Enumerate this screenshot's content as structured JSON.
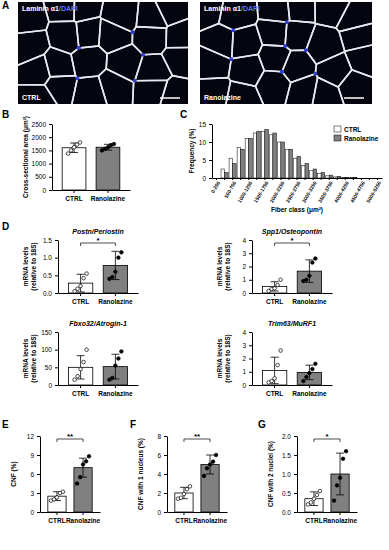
{
  "panel_a": {
    "panel": "A",
    "images": [
      {
        "stain_parts": [
          "Laminin α1",
          "/DAPI"
        ],
        "label": "CTRL"
      },
      {
        "stain_parts": [
          "Laminin α1",
          "/DAPI"
        ],
        "label": "Ranolazine"
      }
    ]
  },
  "chart_data": [
    {
      "type": "bar",
      "panel": "B",
      "ylabel": "Cross-sectional area (μm²)",
      "categories": [
        "CTRL",
        "Ranolazine"
      ],
      "values": [
        1600,
        1620
      ],
      "errors": [
        180,
        110
      ],
      "points": [
        [
          1380,
          1500,
          1620,
          1720,
          1800
        ],
        [
          1500,
          1560,
          1620,
          1700,
          1740
        ]
      ],
      "colors": [
        "#ffffff",
        "#808080"
      ],
      "ylim": [
        0,
        2500
      ],
      "yticks": [
        0,
        500,
        1000,
        1500,
        2000,
        2500
      ]
    },
    {
      "type": "histogram",
      "panel": "C",
      "ylabel": "Frequency (%)",
      "xlabel": "Fiber class (μm²)",
      "categories": [
        "0-250",
        null,
        "500-750",
        null,
        "1000-1250",
        null,
        "1500-1750",
        null,
        "2000-2250",
        null,
        "2500-2750",
        null,
        "3000-3250",
        null,
        "3500-3750",
        null,
        "4000-4250",
        null,
        "4500-4750",
        null,
        "5000-5250"
      ],
      "series": [
        {
          "name": "CTRL",
          "color": "#ffffff",
          "values": [
            0,
            2.5,
            5.5,
            8.5,
            11,
            12.5,
            13,
            12,
            10,
            8,
            5.5,
            3.5,
            2,
            1.2,
            0.6,
            0.3,
            0.2,
            0.1,
            0,
            0,
            0
          ]
        },
        {
          "name": "Ranolazine",
          "color": "#808080",
          "values": [
            0,
            1.5,
            4,
            8,
            11,
            13,
            13.5,
            12.5,
            10,
            8,
            6,
            4,
            2.5,
            1.5,
            0.8,
            0.4,
            0.2,
            0.1,
            0,
            0,
            0
          ]
        }
      ],
      "ylim": [
        0,
        15
      ],
      "yticks": [
        0,
        5,
        10,
        15
      ],
      "legend": "top-right"
    },
    {
      "type": "bar",
      "panel": "D",
      "title": "Postn/Periostin",
      "ylabel": [
        "mRNA levels",
        "(relative to 18S)"
      ],
      "categories": [
        "CTRL",
        "Ranolazine"
      ],
      "values": [
        0.28,
        0.78
      ],
      "errors": [
        0.25,
        0.4
      ],
      "points": [
        [
          0.05,
          0.12,
          0.2,
          0.42,
          0.55
        ],
        [
          0.4,
          0.45,
          0.6,
          1.0,
          1.15
        ]
      ],
      "colors": [
        "#ffffff",
        "#808080"
      ],
      "ylim": [
        0,
        1.5
      ],
      "yticks": [
        {
          "value": 0,
          "label": "0.0"
        },
        0.5,
        {
          "value": 1,
          "label": "1.0"
        },
        1.5
      ],
      "significance": "*"
    },
    {
      "type": "bar",
      "title": "Spp1/Osteopontin",
      "ylabel": [
        "mRNA levels",
        "(relative to 18S)"
      ],
      "categories": [
        "CTRL",
        "Ranolazine"
      ],
      "values": [
        0.5,
        1.65
      ],
      "errors": [
        0.35,
        0.85
      ],
      "points": [
        [
          0.15,
          0.3,
          0.35,
          0.6,
          1.0
        ],
        [
          0.9,
          1.0,
          1.3,
          2.3,
          2.6
        ]
      ],
      "colors": [
        "#ffffff",
        "#808080"
      ],
      "ylim": [
        0,
        4
      ],
      "yticks": [
        0,
        1,
        2,
        3,
        4
      ],
      "significance": "*"
    },
    {
      "type": "bar",
      "title": "Fbxo32/Atrogin-1",
      "ylabel": [
        "mRNA levels",
        "(relative to 18S)"
      ],
      "categories": [
        "CTRL",
        "Ranolazine"
      ],
      "values": [
        50,
        52
      ],
      "errors": [
        33,
        35
      ],
      "points": [
        [
          15,
          25,
          45,
          65,
          100
        ],
        [
          15,
          20,
          55,
          75,
          95
        ]
      ],
      "colors": [
        "#ffffff",
        "#808080"
      ],
      "ylim": [
        0,
        150
      ],
      "yticks": [
        0,
        50,
        100,
        150
      ]
    },
    {
      "type": "bar",
      "title": "Trim63/MuRF1",
      "ylabel": [
        "mRNA levels",
        "(relative to 18S)"
      ],
      "categories": [
        "CTRL",
        "Ranolazine"
      ],
      "values": [
        1.1,
        0.95
      ],
      "errors": [
        1.0,
        0.55
      ],
      "points": [
        [
          0.2,
          0.3,
          0.5,
          1.5,
          2.6
        ],
        [
          0.3,
          0.6,
          0.9,
          1.2,
          1.6
        ]
      ],
      "colors": [
        "#ffffff",
        "#808080"
      ],
      "ylim": [
        0,
        4
      ],
      "yticks": [
        0,
        1,
        2,
        3,
        4
      ]
    },
    {
      "type": "bar",
      "panel": "E",
      "ylabel": "CNF (%)",
      "categories": [
        "CTRL",
        "Ranolazine"
      ],
      "values": [
        2.5,
        7.0
      ],
      "errors": [
        0.7,
        1.5
      ],
      "points": [
        [
          1.8,
          2.0,
          2.3,
          3.0,
          3.2
        ],
        [
          4.5,
          5.5,
          7.5,
          8.0,
          8.8
        ]
      ],
      "colors": [
        "#ffffff",
        "#808080"
      ],
      "ylim": [
        0,
        12
      ],
      "yticks": [
        0,
        3,
        6,
        9,
        12
      ],
      "significance": "**"
    },
    {
      "type": "bar",
      "panel": "F",
      "ylabel": "CNF with 1 nucleus (%)",
      "categories": [
        "CTRL",
        "Ranolazine"
      ],
      "values": [
        2.0,
        5.0
      ],
      "errors": [
        0.6,
        1.0
      ],
      "points": [
        [
          1.4,
          1.5,
          1.9,
          2.4,
          2.7
        ],
        [
          3.8,
          4.6,
          5.0,
          5.3,
          6.0
        ]
      ],
      "colors": [
        "#ffffff",
        "#808080"
      ],
      "ylim": [
        0,
        8
      ],
      "yticks": [
        0,
        2,
        4,
        6,
        8
      ],
      "significance": "**"
    },
    {
      "type": "bar",
      "panel": "G",
      "ylabel": "CNF with 2 nuclei (%)",
      "categories": [
        "CTRL",
        "Ranolazine"
      ],
      "values": [
        0.35,
        1.0
      ],
      "errors": [
        0.18,
        0.55
      ],
      "points": [
        [
          0.2,
          0.25,
          0.35,
          0.45,
          0.55
        ],
        [
          0.3,
          0.7,
          0.9,
          1.4,
          1.6
        ]
      ],
      "colors": [
        "#ffffff",
        "#808080"
      ],
      "ylim": [
        0,
        2
      ],
      "yticks": [
        {
          "value": 0,
          "label": "0.0"
        },
        0.5,
        {
          "value": 1,
          "label": "1.0"
        },
        1.5,
        {
          "value": 2,
          "label": "2.0"
        }
      ],
      "significance": "*"
    }
  ]
}
